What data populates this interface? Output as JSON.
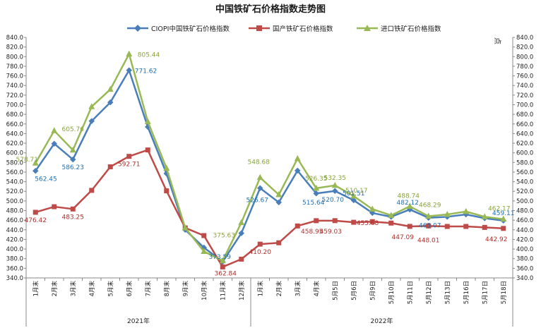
{
  "chart_data": {
    "type": "line",
    "title": "中国铁矿石价格指数走势图",
    "ylabel_right": "点",
    "ylim": [
      340,
      840
    ],
    "ytick_step": 20,
    "grid": false,
    "legend_position": "top",
    "categories": [
      "1月末",
      "2月末",
      "3月末",
      "4月末",
      "5月末",
      "6月末",
      "7月末",
      "8月末",
      "9月末",
      "10月末",
      "11月末",
      "12月末",
      "1月末",
      "2月末",
      "3月末",
      "4月末",
      "5月5日",
      "5月6日",
      "5月9日",
      "5月10日",
      "5月11日",
      "5月12日",
      "5月13日",
      "5月16日",
      "5月17日",
      "5月18日"
    ],
    "year_groups": [
      {
        "label": "2021年",
        "start": 0,
        "end": 11
      },
      {
        "label": "2022年",
        "start": 12,
        "end": 25
      }
    ],
    "series": [
      {
        "name": "CIOPI中国铁矿石价格指数",
        "color": "#4a7ebb",
        "marker": "diamond",
        "values": [
          562.45,
          619,
          586.23,
          666,
          705,
          771.62,
          654,
          557,
          440,
          403,
          373.59,
          433,
          526.67,
          497,
          563,
          515.64,
          520.7,
          501.51,
          475,
          467,
          482.12,
          465.07,
          467,
          472,
          464,
          459.11
        ],
        "labels": [
          {
            "i": 0,
            "text": "562.45"
          },
          {
            "i": 2,
            "text": "586.23"
          },
          {
            "i": 5,
            "text": "771.62"
          },
          {
            "i": 10,
            "text": "373.59"
          },
          {
            "i": 12,
            "text": "526.67"
          },
          {
            "i": 15,
            "text": "515.64"
          },
          {
            "i": 16,
            "text": "520.70"
          },
          {
            "i": 17,
            "text": "501.51"
          },
          {
            "i": 20,
            "text": "482.12"
          },
          {
            "i": 21,
            "text": "465.07"
          },
          {
            "i": 25,
            "text": "459.11"
          }
        ]
      },
      {
        "name": "国产铁矿石价格指数",
        "color": "#be4b48",
        "marker": "square",
        "values": [
          476.42,
          488,
          483.25,
          522,
          571,
          592.71,
          606,
          521,
          444,
          428,
          362.84,
          379,
          410.2,
          413,
          448,
          458.95,
          459.03,
          455.68,
          457,
          454,
          447.09,
          448.01,
          447,
          447,
          445,
          442.92
        ],
        "labels": [
          {
            "i": 0,
            "text": "476.42"
          },
          {
            "i": 2,
            "text": "483.25"
          },
          {
            "i": 5,
            "text": "592.71"
          },
          {
            "i": 10,
            "text": "362.84"
          },
          {
            "i": 12,
            "text": "410.20"
          },
          {
            "i": 15,
            "text": "458.95"
          },
          {
            "i": 16,
            "text": "459.03"
          },
          {
            "i": 17,
            "text": "455.68"
          },
          {
            "i": 20,
            "text": "447.09"
          },
          {
            "i": 21,
            "text": "448.01"
          },
          {
            "i": 25,
            "text": "442.92"
          }
        ]
      },
      {
        "name": "进口铁矿石价格指数",
        "color": "#98b954",
        "marker": "triangle",
        "values": [
          578.71,
          646,
          605.76,
          696,
          732,
          805.44,
          665,
          568,
          444,
          395,
          375.63,
          455,
          548.68,
          513,
          588,
          526.35,
          532.35,
          510.17,
          483,
          470,
          488.74,
          468.29,
          472,
          478,
          467,
          462.17
        ],
        "labels": [
          {
            "i": 0,
            "text": "578.71"
          },
          {
            "i": 2,
            "text": "605.76"
          },
          {
            "i": 5,
            "text": "805.44"
          },
          {
            "i": 10,
            "text": "375.63"
          },
          {
            "i": 12,
            "text": "548.68"
          },
          {
            "i": 15,
            "text": "526.35"
          },
          {
            "i": 16,
            "text": "532.35"
          },
          {
            "i": 17,
            "text": "510.17"
          },
          {
            "i": 20,
            "text": "488.74"
          },
          {
            "i": 21,
            "text": "468.29"
          },
          {
            "i": 25,
            "text": "462.17"
          }
        ]
      }
    ]
  }
}
